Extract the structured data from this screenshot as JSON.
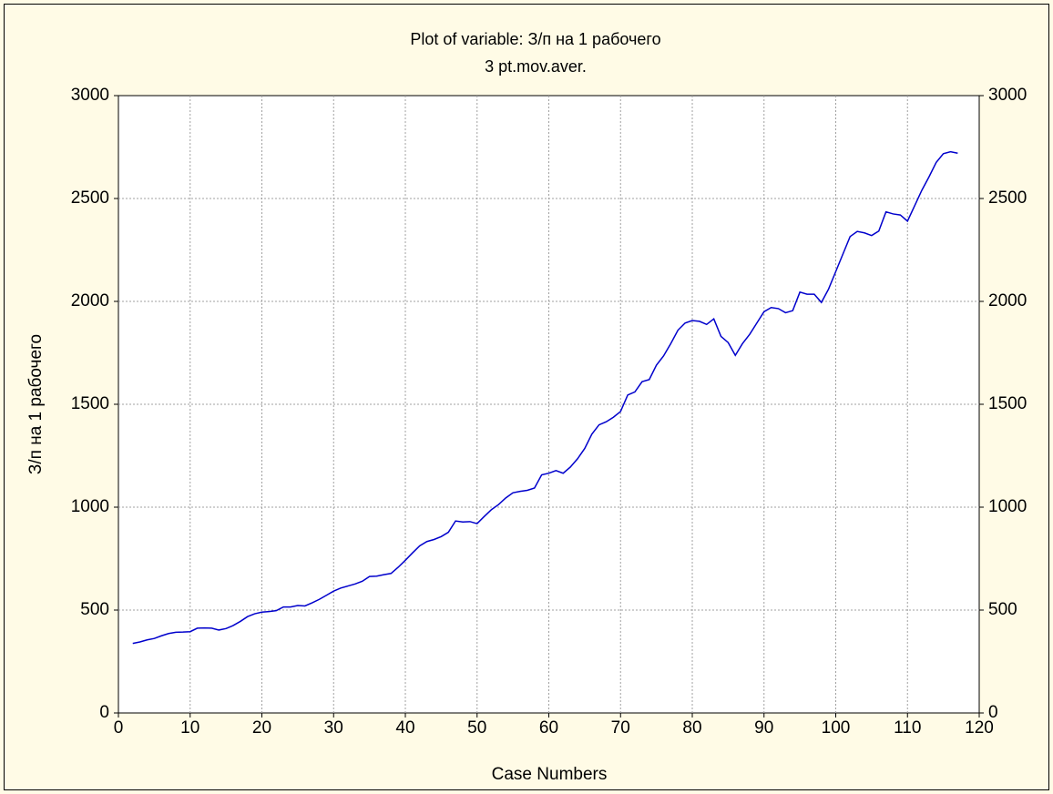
{
  "chart_data": {
    "type": "line",
    "title": "Plot of variable: З/п на 1 рабочего",
    "subtitle": "3 pt.mov.aver.",
    "xlabel": "Case Numbers",
    "ylabel": "З/п на 1 рабочего",
    "x": [
      2,
      3,
      4,
      5,
      6,
      7,
      8,
      9,
      10,
      11,
      12,
      13,
      14,
      15,
      16,
      17,
      18,
      19,
      20,
      21,
      22,
      23,
      24,
      25,
      26,
      27,
      28,
      29,
      30,
      31,
      32,
      33,
      34,
      35,
      36,
      37,
      38,
      39,
      40,
      41,
      42,
      43,
      44,
      45,
      46,
      47,
      48,
      49,
      50,
      51,
      52,
      53,
      54,
      55,
      56,
      57,
      58,
      59,
      60,
      61,
      62,
      63,
      64,
      65,
      66,
      67,
      68,
      69,
      70,
      71,
      72,
      73,
      74,
      75,
      76,
      77,
      78,
      79,
      80,
      81,
      82,
      83,
      84,
      85,
      86,
      87,
      88,
      89,
      90,
      91,
      92,
      93,
      94,
      95,
      96,
      97,
      98,
      99,
      100,
      101,
      102,
      103,
      104,
      105,
      106,
      107,
      108,
      109,
      110,
      111,
      112,
      113,
      114,
      115,
      116,
      117
    ],
    "values": [
      338,
      345,
      355,
      362,
      375,
      386,
      392,
      393,
      395,
      412,
      413,
      412,
      403,
      410,
      425,
      445,
      468,
      482,
      490,
      493,
      497,
      515,
      515,
      522,
      520,
      535,
      552,
      572,
      592,
      607,
      617,
      627,
      640,
      663,
      665,
      672,
      678,
      708,
      742,
      778,
      812,
      833,
      843,
      857,
      878,
      933,
      928,
      930,
      920,
      955,
      988,
      1013,
      1045,
      1070,
      1077,
      1082,
      1093,
      1157,
      1165,
      1178,
      1165,
      1195,
      1235,
      1285,
      1355,
      1400,
      1415,
      1437,
      1465,
      1545,
      1560,
      1610,
      1620,
      1690,
      1735,
      1795,
      1860,
      1895,
      1907,
      1903,
      1888,
      1915,
      1830,
      1800,
      1738,
      1795,
      1840,
      1895,
      1950,
      1970,
      1965,
      1945,
      1955,
      2045,
      2035,
      2035,
      1995,
      2060,
      2145,
      2230,
      2315,
      2340,
      2333,
      2320,
      2342,
      2435,
      2425,
      2420,
      2390,
      2465,
      2540,
      2605,
      2675,
      2718,
      2727,
      2720
    ],
    "color": "#0000cc",
    "xlim": [
      0,
      120
    ],
    "xticks": [
      0,
      10,
      20,
      30,
      40,
      50,
      60,
      70,
      80,
      90,
      100,
      110,
      120
    ],
    "ylim": [
      0,
      3000
    ],
    "yticks": [
      0,
      500,
      1000,
      1500,
      2000,
      2500,
      3000
    ],
    "grid": true
  }
}
